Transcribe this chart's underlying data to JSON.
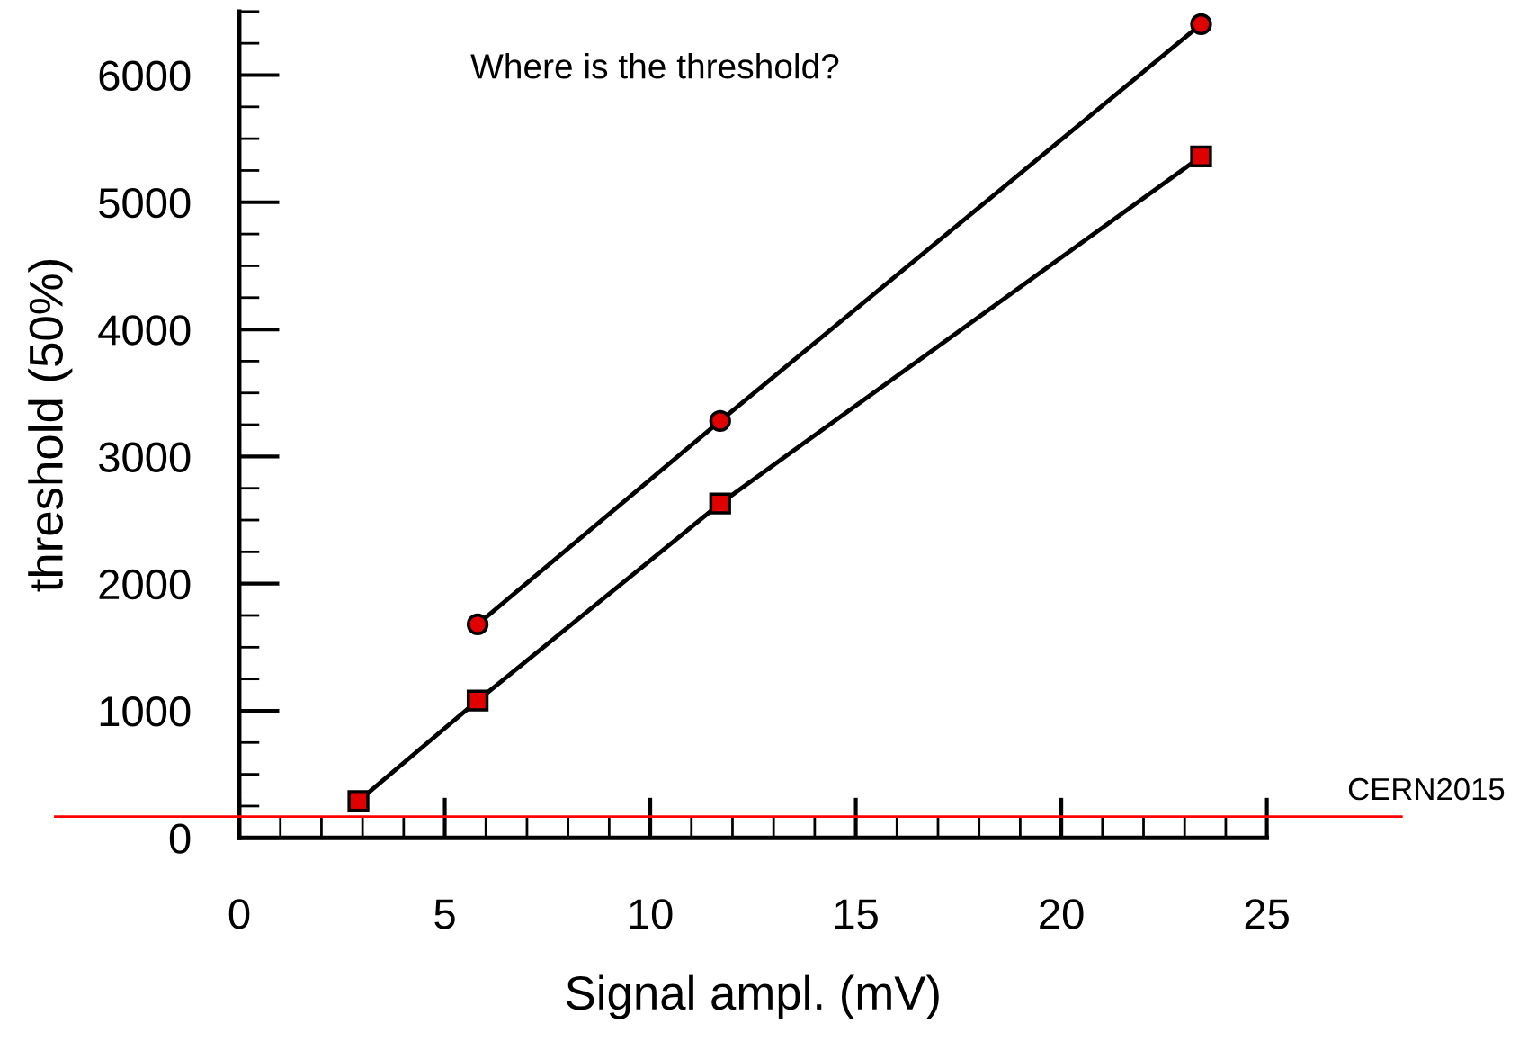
{
  "chart_data": {
    "type": "line",
    "xlabel": "Signal ampl. (mV)",
    "ylabel": "threshold (50%)",
    "annotations": [
      "Where is the threshold?"
    ],
    "series": [
      {
        "color": "#000000",
        "marker": "circle",
        "x": [
          5.8,
          11.7,
          23.4
        ],
        "values": [
          1680,
          3280,
          6400
        ]
      },
      {
        "color": "#000000",
        "marker": "square",
        "x": [
          2.9,
          5.8,
          11.7,
          23.4
        ],
        "values": [
          290,
          1080,
          2630,
          5360
        ]
      }
    ],
    "xlim": [
      0,
      25
    ],
    "xticks": [
      0,
      5,
      10,
      15,
      20,
      25
    ],
    "ylim": [
      0,
      6500
    ],
    "yticks": [
      0,
      1000,
      2000,
      3000,
      4000,
      5000,
      6000
    ],
    "ref_lines": [
      {
        "axis": "y",
        "value": 168,
        "label": "CERN2015",
        "color": "#ff0000"
      }
    ],
    "grid": false,
    "legend": false,
    "line_style": "solid"
  }
}
